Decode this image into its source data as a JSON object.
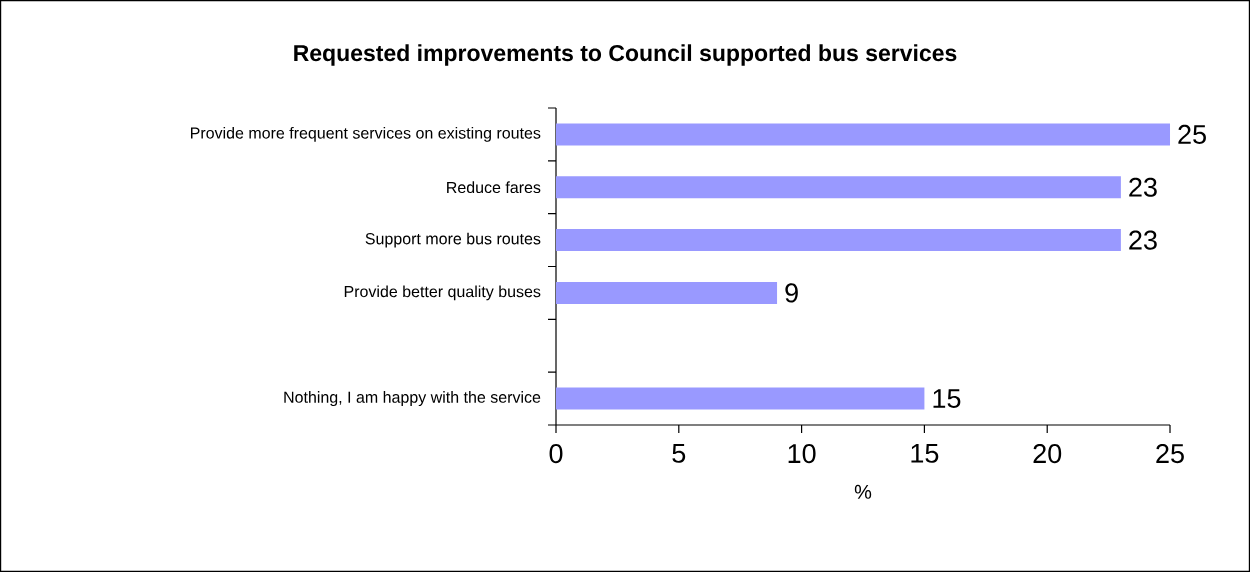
{
  "chart_data": {
    "type": "bar",
    "orientation": "horizontal",
    "title": "Requested improvements to Council supported bus services",
    "categories": [
      "Provide more frequent services on existing routes",
      "Reduce fares",
      "Support more bus routes",
      "Provide better quality buses",
      null,
      "Nothing, I am happy with the service"
    ],
    "values": [
      25,
      23,
      23,
      9,
      null,
      15
    ],
    "color": "#9999ff",
    "xlabel": "%",
    "xlim": [
      0,
      25
    ],
    "xticks": [
      0,
      5,
      10,
      15,
      20,
      25
    ],
    "data_labels": true
  }
}
